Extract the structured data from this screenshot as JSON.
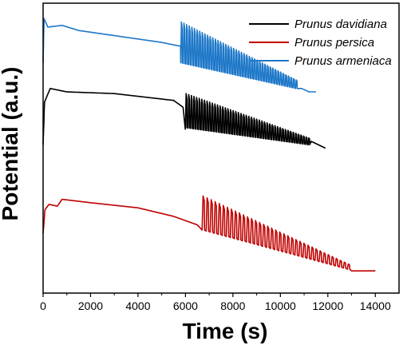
{
  "chart_data": {
    "type": "line",
    "xlabel": "Time (s)",
    "ylabel": "Potential (a.u.)",
    "xlim": [
      0,
      15000
    ],
    "x_ticks": [
      0,
      2000,
      4000,
      6000,
      8000,
      10000,
      12000,
      14000
    ],
    "y_ticks_shown": false,
    "legend_position": "top-right",
    "series": [
      {
        "name": "Prunus davidiana",
        "color": "#000000",
        "baseline_offset": 0.5,
        "keypoints": [
          [
            0,
            0.02
          ],
          [
            60,
            0.27
          ],
          [
            300,
            0.35
          ],
          [
            1000,
            0.33
          ],
          [
            3000,
            0.32
          ],
          [
            5500,
            0.28
          ],
          [
            5900,
            0.24
          ],
          [
            6000,
            0.1
          ]
        ],
        "osc_start": 6000,
        "osc_end": 11200,
        "period": 110,
        "amp_start": 0.2,
        "amp_end": 0.04,
        "base_start": 0.12,
        "base_end": 0.02,
        "tail": [
          [
            11300,
            0.04
          ],
          [
            11900,
            0.0
          ]
        ]
      },
      {
        "name": "Prunus persica",
        "color": "#c00000",
        "baseline_offset": 0.0,
        "keypoints": [
          [
            0,
            0.0
          ],
          [
            80,
            0.14
          ],
          [
            250,
            0.17
          ],
          [
            600,
            0.16
          ],
          [
            800,
            0.2
          ],
          [
            2000,
            0.18
          ],
          [
            4000,
            0.15
          ],
          [
            5500,
            0.1
          ],
          [
            6500,
            0.05
          ],
          [
            6700,
            0.02
          ]
        ],
        "osc_start": 6700,
        "osc_end": 12900,
        "period": 170,
        "amp_start": 0.2,
        "amp_end": 0.03,
        "base_start": 0.02,
        "base_end": -0.21,
        "tail": [
          [
            13000,
            -0.22
          ],
          [
            14000,
            -0.22
          ]
        ]
      },
      {
        "name": "Prunus armeniaca",
        "color": "#1e78c8",
        "baseline_offset": 1.0,
        "keypoints": [
          [
            0,
            0.0
          ],
          [
            40,
            0.26
          ],
          [
            200,
            0.21
          ],
          [
            800,
            0.22
          ],
          [
            1500,
            0.19
          ],
          [
            3000,
            0.16
          ],
          [
            5000,
            0.12
          ],
          [
            5700,
            0.1
          ]
        ],
        "osc_start": 5800,
        "osc_end": 10700,
        "period": 110,
        "amp_start": 0.24,
        "amp_end": 0.05,
        "base_start": 0.0,
        "base_end": -0.15,
        "tail": [
          [
            10900,
            -0.15
          ],
          [
            11200,
            -0.17
          ],
          [
            11500,
            -0.17
          ]
        ]
      }
    ]
  }
}
